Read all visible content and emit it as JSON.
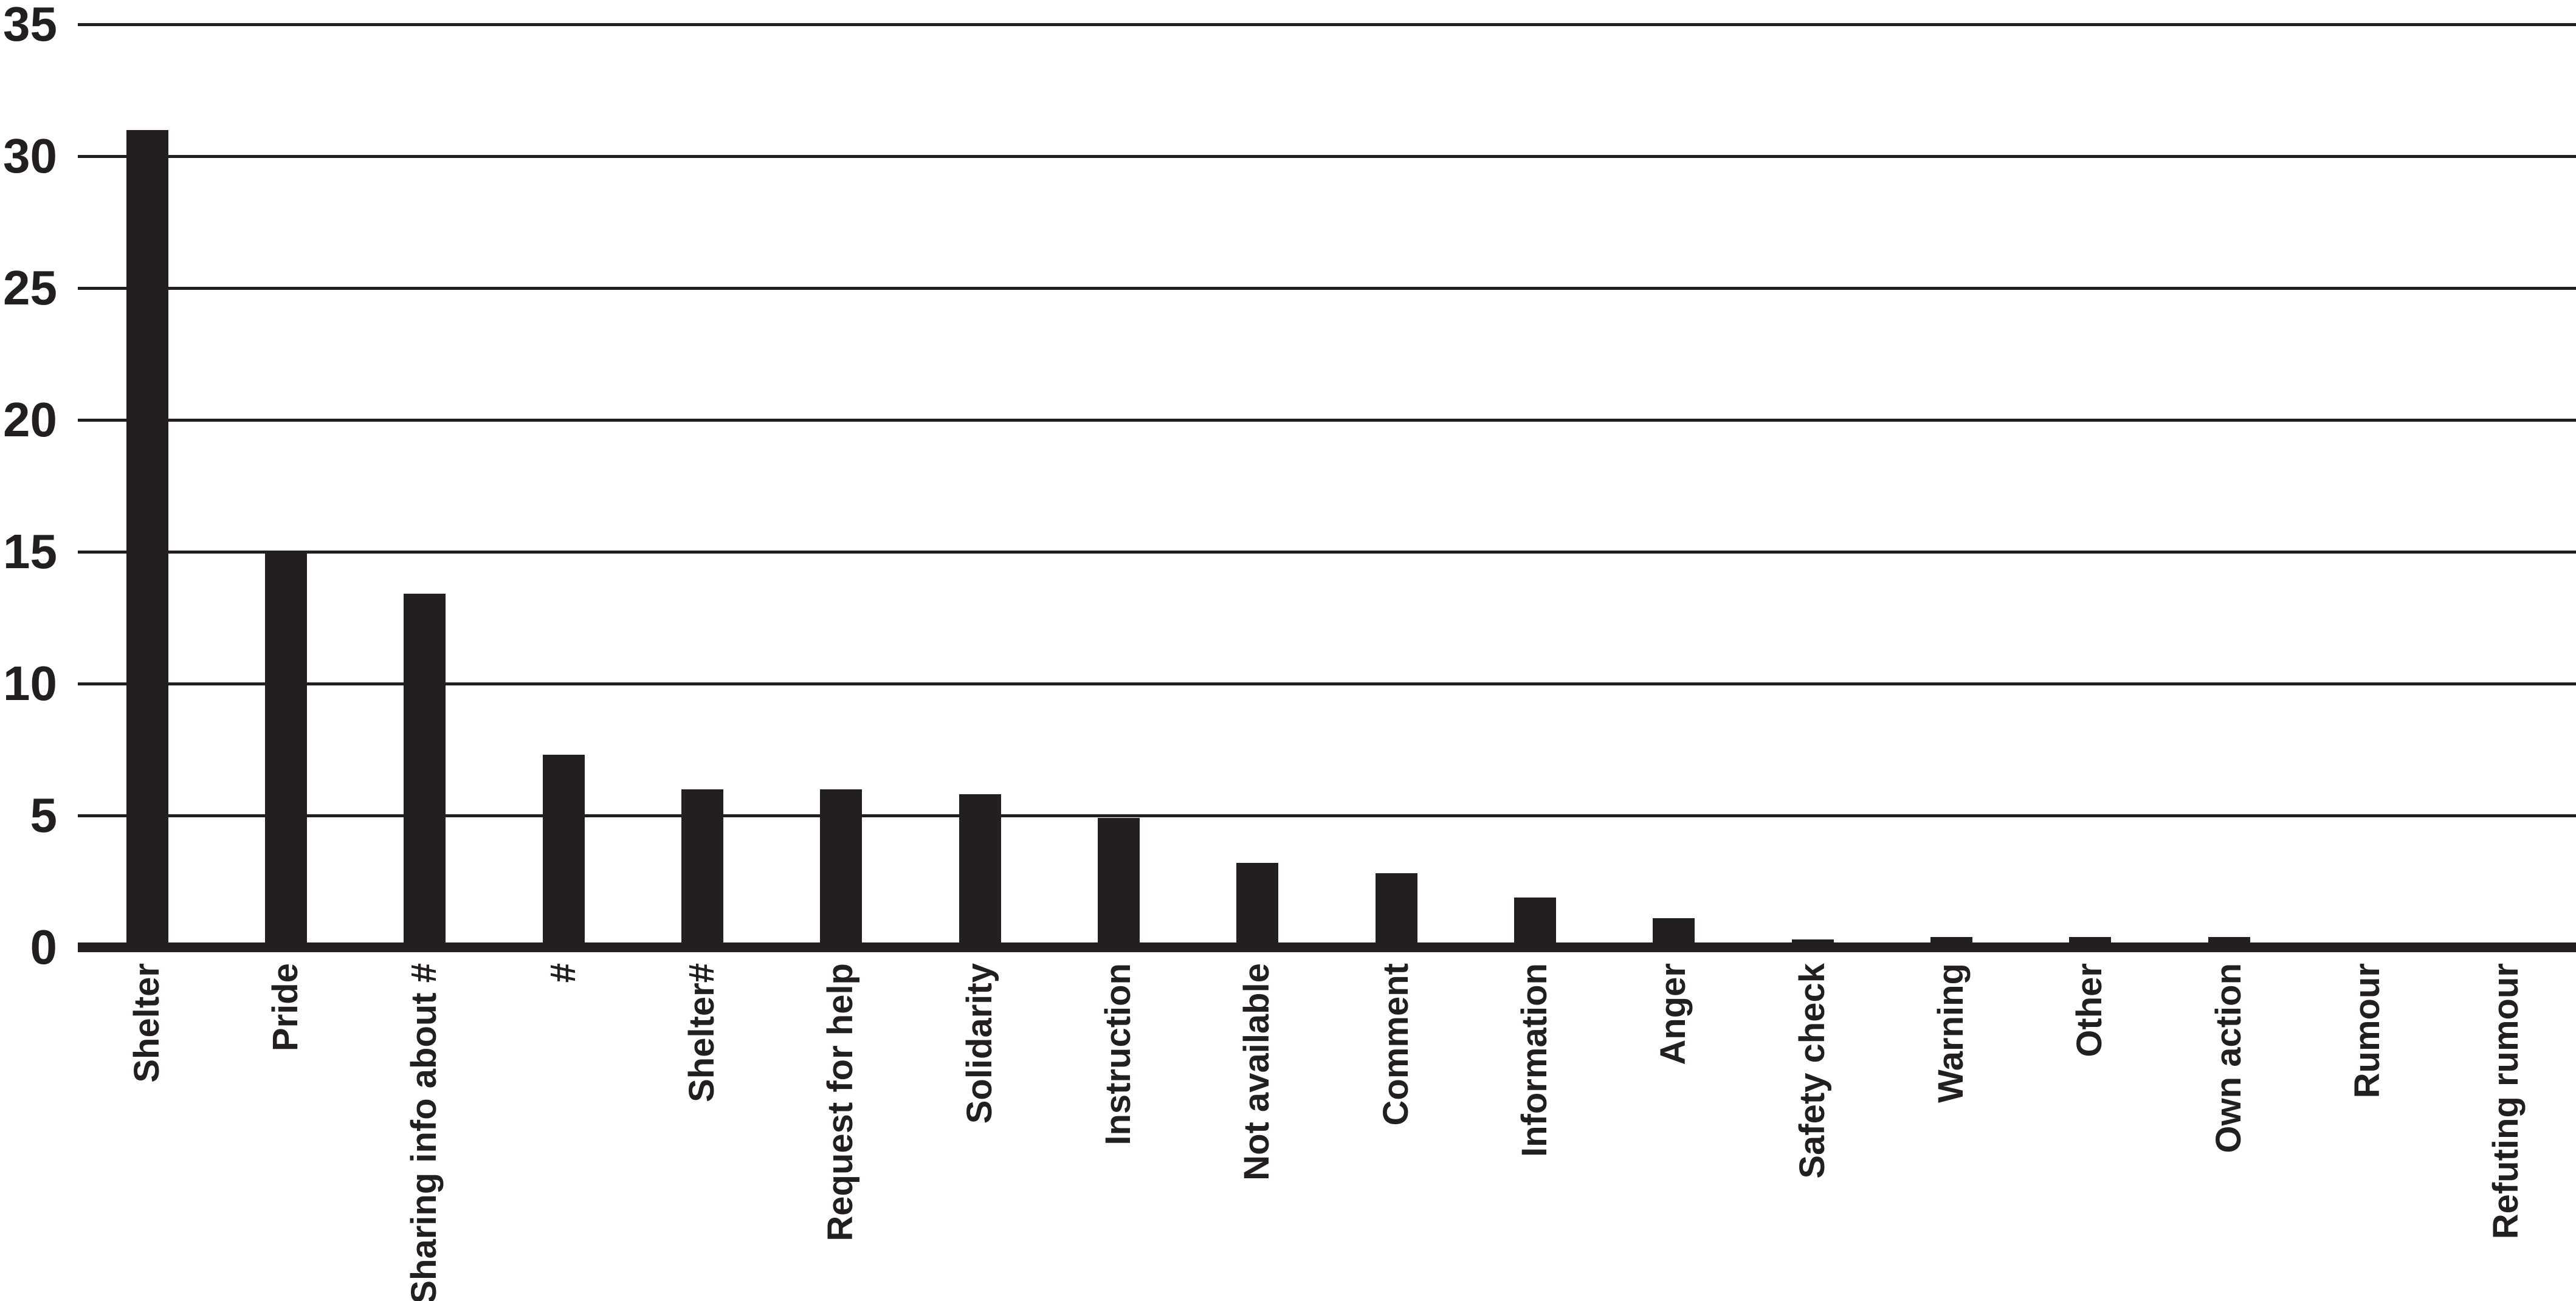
{
  "figure": {
    "background": "#ffffff",
    "ink_color": "#231f20"
  },
  "chart_data": {
    "type": "bar",
    "title": "",
    "subtitle": "",
    "xlabel": "",
    "ylabel": "",
    "legend": "none",
    "grid": "horizontal gridlines every 5 units, full plot width",
    "bar_color": "#231f20",
    "background": "#ffffff",
    "ylim": [
      0,
      35
    ],
    "ytick_interval": 5,
    "yticks": [
      "0",
      "5",
      "10",
      "15",
      "20",
      "25",
      "30",
      "35"
    ],
    "x_tick_label_style": "rotated 90 degrees counterclockwise, reads bottom to top, anchored below axis",
    "categories": [
      "Shelter",
      "Pride",
      "Sharing info about #",
      "#",
      "Shelter#",
      "Request for help",
      "Solidarity",
      "Instruction",
      "Not available",
      "Comment",
      "Information",
      "Anger",
      "Safety check",
      "Warning",
      "Other",
      "Own action",
      "Rumour",
      "Refuting rumour"
    ],
    "values": [
      31,
      15,
      13.4,
      7.3,
      6,
      6,
      5.8,
      4.9,
      3.2,
      2.8,
      1.9,
      1.1,
      0.3,
      0.4,
      0.4,
      0.4,
      0,
      0
    ]
  }
}
